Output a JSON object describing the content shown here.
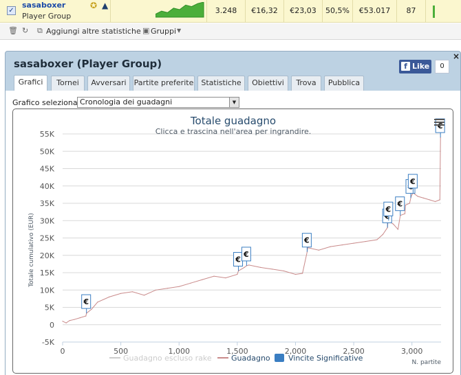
{
  "player_row": {
    "checkbox_mark": "✓",
    "name": "sasaboxer",
    "group": "Player Group",
    "sparkline": [
      0.2,
      0.4,
      0.3,
      0.6,
      0.5,
      0.8,
      0.7,
      0.9,
      1.0
    ],
    "stats": [
      "3.248",
      "€16,32",
      "€23,03",
      "50,5%",
      "€53.017",
      "87"
    ],
    "accent_color": "#4bae3a"
  },
  "toolbar": {
    "add_stats_label": "Aggiungi altre statistiche",
    "groups_label": "Gruppi"
  },
  "panel": {
    "title": "sasaboxer (Player Group)",
    "like_label": "Like",
    "like_count": "0",
    "close": "×",
    "tabs": [
      {
        "label": "Grafici",
        "active": true
      },
      {
        "label": "Tornei",
        "active": false
      },
      {
        "label": "Avversari",
        "active": false
      },
      {
        "label": "Partite preferite",
        "active": false
      },
      {
        "label": "Statistiche",
        "active": false
      },
      {
        "label": "Obiettivi",
        "active": false
      },
      {
        "label": "Trova",
        "active": false
      },
      {
        "label": "Pubblica",
        "active": false
      }
    ],
    "selector_label": "Grafico selezionato",
    "selector_value": "Cronologia dei guadagni"
  },
  "chart_data": {
    "type": "line",
    "title": "Totale guadagno",
    "subtitle": "Clicca e trascina nell'area per ingrandire.",
    "xlabel": "N. partite",
    "ylabel": "Totale cumulativo (EUR)",
    "xlim": [
      0,
      3250
    ],
    "ylim": [
      -5000,
      55000
    ],
    "xticks": [
      0,
      500,
      1000,
      1500,
      2000,
      2500,
      3000
    ],
    "xtick_labels": [
      "0",
      "500",
      "1,000",
      "1,500",
      "2,000",
      "2,500",
      "3,000"
    ],
    "yticks": [
      -5000,
      0,
      5000,
      10000,
      15000,
      20000,
      25000,
      30000,
      35000,
      40000,
      45000,
      50000,
      55000
    ],
    "ytick_labels": [
      "-5K",
      "0",
      "5K",
      "10K",
      "15K",
      "20K",
      "25K",
      "30K",
      "35K",
      "40K",
      "45K",
      "50K",
      "55K"
    ],
    "grid": true,
    "legend_position": "bottom",
    "series": [
      {
        "name": "Guadagno",
        "color": "#c98a8a",
        "x": [
          0,
          30,
          60,
          100,
          150,
          200,
          205,
          250,
          300,
          400,
          500,
          600,
          700,
          800,
          900,
          1000,
          1100,
          1200,
          1300,
          1400,
          1500,
          1510,
          1560,
          1580,
          1600,
          1700,
          1800,
          1900,
          2000,
          2060,
          2100,
          2105,
          2200,
          2300,
          2400,
          2500,
          2600,
          2700,
          2750,
          2790,
          2795,
          2840,
          2880,
          2900,
          2940,
          2945,
          2980,
          2990,
          3000,
          3010,
          3050,
          3100,
          3150,
          3200,
          3240,
          3245
        ],
        "y": [
          1000,
          500,
          1200,
          1500,
          2000,
          2500,
          3300,
          4500,
          6500,
          8000,
          9000,
          9500,
          8500,
          10000,
          10500,
          11000,
          12000,
          13000,
          14000,
          13500,
          14500,
          15500,
          16500,
          17000,
          17200,
          16500,
          16000,
          15500,
          14500,
          14800,
          21000,
          22200,
          21500,
          22500,
          23000,
          23500,
          24000,
          24500,
          26000,
          28000,
          30000,
          29000,
          27500,
          31500,
          32000,
          34500,
          35000,
          36500,
          37500,
          38000,
          37000,
          36500,
          36000,
          35500,
          36000,
          54000
        ]
      },
      {
        "name": "Guadagno escluso rake",
        "color": "#cccccc",
        "x": [],
        "y": []
      },
      {
        "name": "Vincite Significative",
        "color": "#3a7ec2",
        "type": "flags",
        "label": "€",
        "x": [
          205,
          1510,
          1580,
          2100,
          2790,
          2800,
          2900,
          2990,
          3010,
          3245
        ],
        "y": [
          3300,
          15500,
          17000,
          21000,
          28000,
          30000,
          31500,
          36500,
          38000,
          54000
        ]
      }
    ]
  }
}
